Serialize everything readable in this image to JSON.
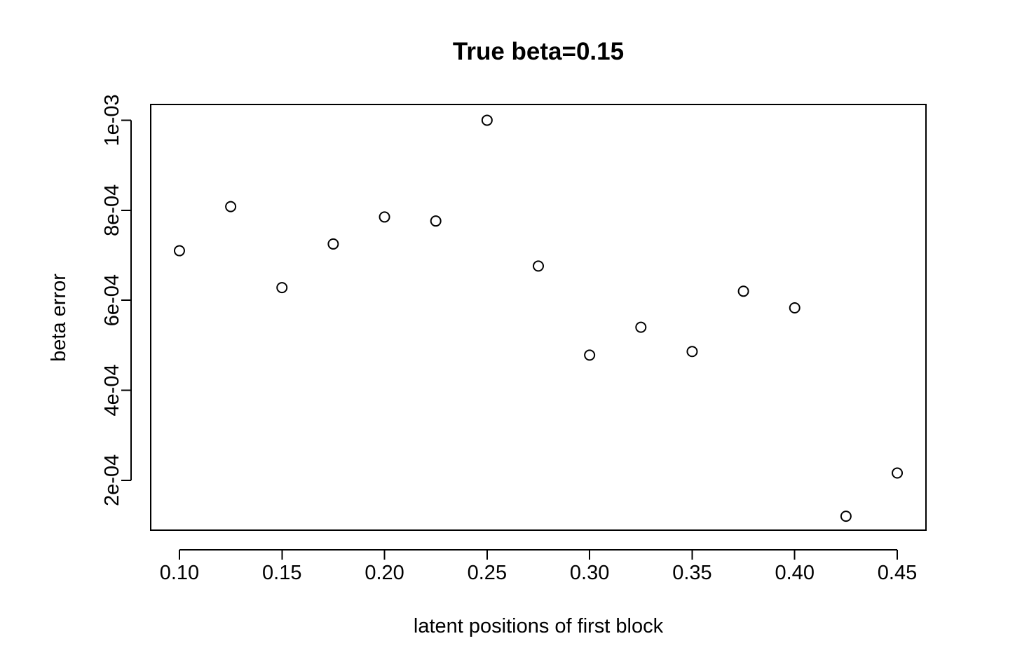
{
  "chart_data": {
    "type": "scatter",
    "title": "True beta=0.15",
    "xlabel": "latent positions of first block",
    "ylabel": "beta error",
    "x": [
      0.1,
      0.125,
      0.15,
      0.175,
      0.2,
      0.225,
      0.25,
      0.275,
      0.3,
      0.325,
      0.35,
      0.375,
      0.4,
      0.425,
      0.45
    ],
    "y": [
      0.00071,
      0.000808,
      0.000628,
      0.000725,
      0.000785,
      0.000776,
      0.001,
      0.000676,
      0.000478,
      0.00054,
      0.000486,
      0.00062,
      0.000583,
      0.00012,
      0.000216
    ],
    "xlim": [
      0.086,
      0.464
    ],
    "ylim": [
      8.9e-05,
      0.001035
    ],
    "x_ticks": [
      0.1,
      0.15,
      0.2,
      0.25,
      0.3,
      0.35,
      0.4,
      0.45
    ],
    "x_tick_labels": [
      "0.10",
      "0.15",
      "0.20",
      "0.25",
      "0.30",
      "0.35",
      "0.40",
      "0.45"
    ],
    "y_ticks": [
      0.0002,
      0.0004,
      0.0006,
      0.0008,
      0.001
    ],
    "y_tick_labels": [
      "2e-04",
      "4e-04",
      "6e-04",
      "8e-04",
      "1e-03"
    ],
    "grid": false,
    "legend": "none",
    "marker": "open-circle",
    "colors": {
      "point": "#000000",
      "axis": "#000000",
      "background": "#ffffff"
    }
  }
}
